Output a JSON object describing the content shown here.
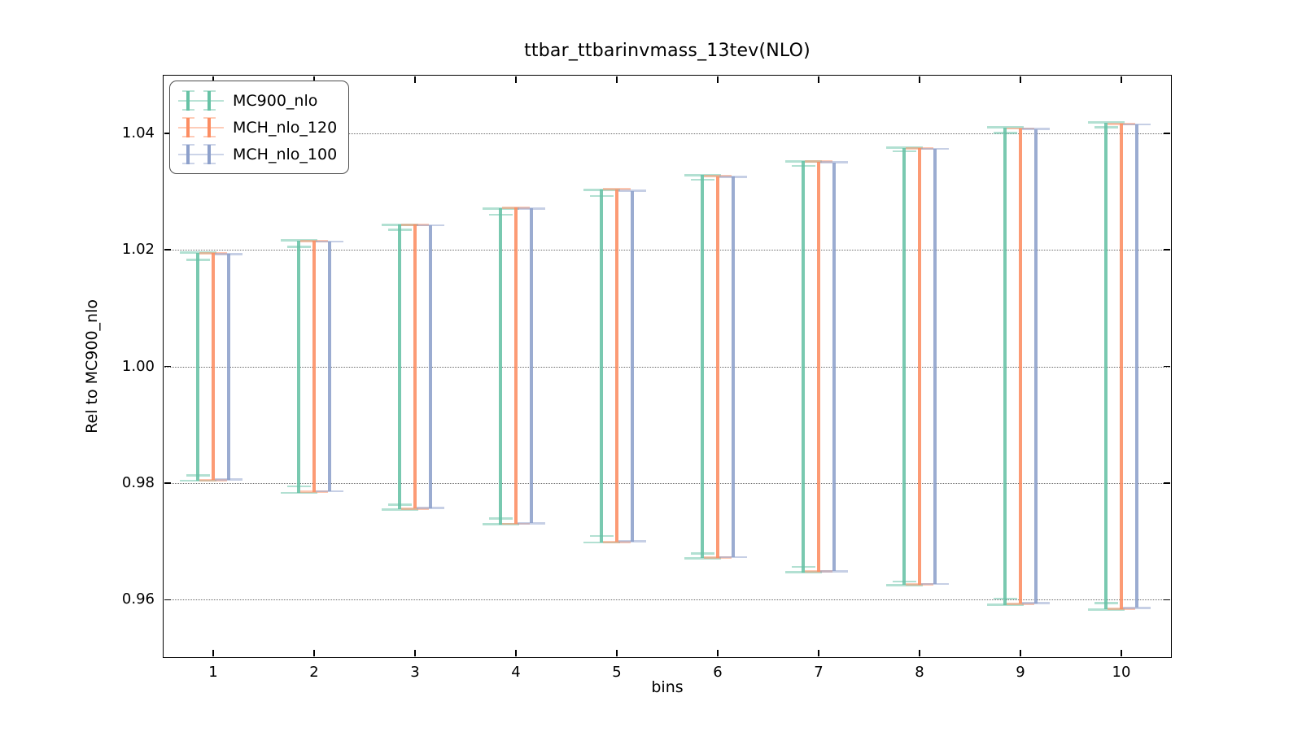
{
  "figure": {
    "background_color": "#ffffff",
    "frame_color": "#000000"
  },
  "chart_data": {
    "type": "errorbar",
    "title": "ttbar_ttbarinvmass_13tev(NLO)",
    "xlabel": "bins",
    "ylabel": "Rel to MC900_nlo",
    "x": [
      1,
      2,
      3,
      4,
      5,
      6,
      7,
      8,
      9,
      10
    ],
    "xtick_labels": [
      "1",
      "2",
      "3",
      "4",
      "5",
      "6",
      "7",
      "8",
      "9",
      "10"
    ],
    "ytick_labels": [
      "1.04",
      "1.02",
      "1.00",
      "0.98",
      "0.96"
    ],
    "yticks": [
      1.04,
      1.02,
      1.0,
      0.98,
      0.96
    ],
    "xlim": [
      0.5,
      10.5
    ],
    "ylim": [
      0.95,
      1.05
    ],
    "grid": "horizontal-dotted",
    "legend_position": "upper-left",
    "series": [
      {
        "name": "MC900_nlo",
        "color": "#66c2a5",
        "bars": [
          {
            "lo": 0.9804,
            "hi": 1.0195,
            "inner_lo": 0.9813,
            "inner_hi": 1.0183
          },
          {
            "lo": 0.9783,
            "hi": 1.0216,
            "inner_lo": 0.9794,
            "inner_hi": 1.0205
          },
          {
            "lo": 0.9755,
            "hi": 1.0243,
            "inner_lo": 0.9763,
            "inner_hi": 1.0234
          },
          {
            "lo": 0.9729,
            "hi": 1.0271,
            "inner_lo": 0.9739,
            "inner_hi": 1.026
          },
          {
            "lo": 0.9698,
            "hi": 1.0303,
            "inner_lo": 0.9709,
            "inner_hi": 1.0292
          },
          {
            "lo": 0.9671,
            "hi": 1.0328,
            "inner_lo": 0.9679,
            "inner_hi": 1.032
          },
          {
            "lo": 0.9647,
            "hi": 1.0352,
            "inner_lo": 0.9656,
            "inner_hi": 1.0344
          },
          {
            "lo": 0.9625,
            "hi": 1.0375,
            "inner_lo": 0.9631,
            "inner_hi": 1.0369
          },
          {
            "lo": 0.9591,
            "hi": 1.041,
            "inner_lo": 0.9602,
            "inner_hi": 1.04
          },
          {
            "lo": 0.9583,
            "hi": 1.0418,
            "inner_lo": 0.9594,
            "inner_hi": 1.041
          }
        ]
      },
      {
        "name": "MCH_nlo_120",
        "color": "#fc8d62",
        "bars": [
          {
            "lo": 0.9805,
            "hi": 1.0194
          },
          {
            "lo": 0.9785,
            "hi": 1.0215
          },
          {
            "lo": 0.9756,
            "hi": 1.0243
          },
          {
            "lo": 0.973,
            "hi": 1.0272
          },
          {
            "lo": 0.9699,
            "hi": 1.0304
          },
          {
            "lo": 0.9672,
            "hi": 1.0326
          },
          {
            "lo": 0.9648,
            "hi": 1.0351
          },
          {
            "lo": 0.9626,
            "hi": 1.0374
          },
          {
            "lo": 0.9593,
            "hi": 1.0408
          },
          {
            "lo": 0.9584,
            "hi": 1.0416
          }
        ]
      },
      {
        "name": "MCH_nlo_100",
        "color": "#8da0cb",
        "bars": [
          {
            "lo": 0.9806,
            "hi": 1.0193
          },
          {
            "lo": 0.9786,
            "hi": 1.0214
          },
          {
            "lo": 0.9757,
            "hi": 1.0242
          },
          {
            "lo": 0.9731,
            "hi": 1.0271
          },
          {
            "lo": 0.97,
            "hi": 1.0301
          },
          {
            "lo": 0.9673,
            "hi": 1.0325
          },
          {
            "lo": 0.9649,
            "hi": 1.035
          },
          {
            "lo": 0.9627,
            "hi": 1.0373
          },
          {
            "lo": 0.9594,
            "hi": 1.0407
          },
          {
            "lo": 0.9586,
            "hi": 1.0415
          }
        ]
      }
    ]
  }
}
